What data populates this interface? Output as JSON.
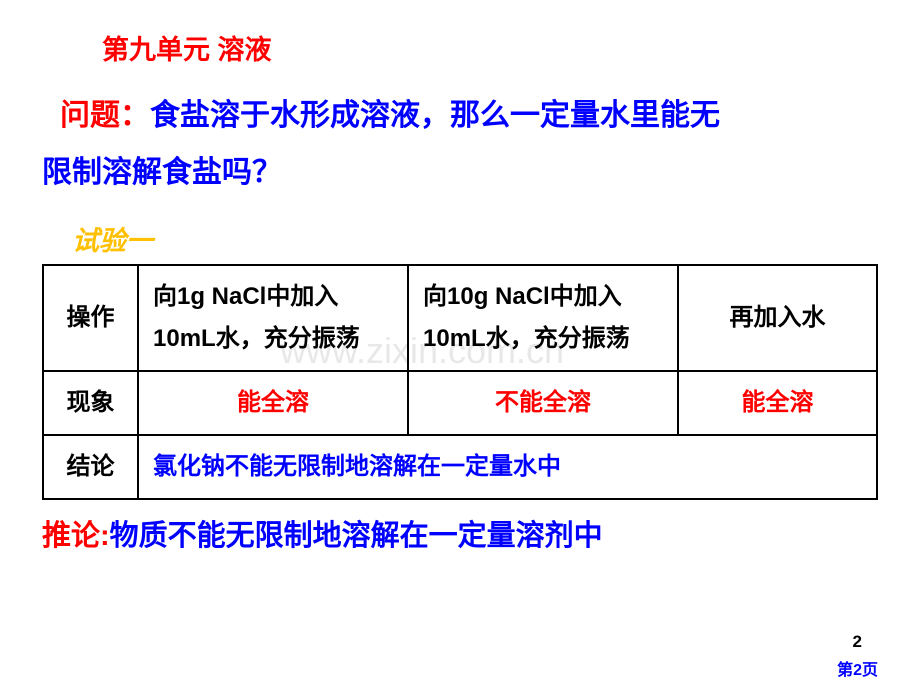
{
  "unit_title": "第九单元 溶液",
  "question": {
    "label": "问题：",
    "text_line1": "食盐溶于水形成溶液，那么一定量水里能无",
    "text_line2": "限制溶解食盐吗？"
  },
  "experiment_label": "试验一",
  "table": {
    "row1_header": "操作",
    "row1_col1": "向1g NaCl中加入10mL水，充分振荡",
    "row1_col2": "向10g NaCl中加入10mL水，充分振荡",
    "row1_col3": "再加入水",
    "row2_header": "现象",
    "row2_col1": "能全溶",
    "row2_col2": "不能全溶",
    "row2_col3": "能全溶",
    "row3_header": "结论",
    "row3_content": "氯化钠不能无限制地溶解在一定量水中"
  },
  "corollary": {
    "label": "推论:",
    "text": "物质不能无限制地溶解在一定量溶剂中"
  },
  "watermark": "www.zixin.com.cn",
  "page_number": "2",
  "slide_number": "第2页"
}
